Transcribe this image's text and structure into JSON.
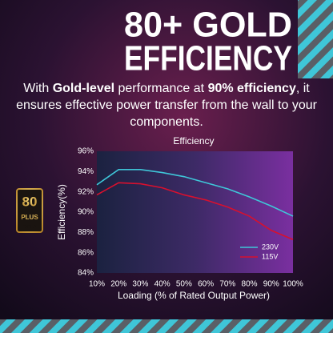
{
  "header": {
    "title_lines": [
      "80+ GOLD",
      "EFFICIENCY"
    ]
  },
  "intro": {
    "parts": [
      "With ",
      "Gold-level",
      " performance at ",
      "90% efficiency",
      ", it ensures effective power transfer from the wall to your components."
    ]
  },
  "badge": {
    "number": "80",
    "plus": "PLUS",
    "level": "GOLD"
  },
  "chart_data": {
    "type": "line",
    "title": "Efficiency",
    "x_label": "Loading (% of Rated Output Power)",
    "y_label": "Efficiency(%)",
    "x": [
      10,
      20,
      30,
      40,
      50,
      60,
      70,
      80,
      90,
      100
    ],
    "series": [
      {
        "name": "230V",
        "color": "#3fc6d8",
        "values": [
          92.7,
          94.2,
          94.2,
          93.9,
          93.5,
          92.9,
          92.3,
          91.5,
          90.6,
          89.6
        ]
      },
      {
        "name": "115V",
        "color": "#d8102e",
        "values": [
          91.7,
          92.9,
          92.8,
          92.4,
          91.7,
          91.2,
          90.5,
          89.6,
          88.2,
          87.3
        ]
      }
    ],
    "xlim": [
      10,
      100
    ],
    "xticks": [
      {
        "value": 10,
        "label": "10%"
      },
      {
        "value": 20,
        "label": "20%"
      },
      {
        "value": 30,
        "label": "30%"
      },
      {
        "value": 40,
        "label": "40%"
      },
      {
        "value": 50,
        "label": "50%"
      },
      {
        "value": 60,
        "label": "60%"
      },
      {
        "value": 70,
        "label": "70%"
      },
      {
        "value": 80,
        "label": "80%"
      },
      {
        "value": 90,
        "label": "90%"
      },
      {
        "value": 100,
        "label": "100%"
      }
    ],
    "ylim": [
      84,
      96
    ],
    "yticks": [
      {
        "value": 84,
        "label": "84%"
      },
      {
        "value": 86,
        "label": "86%"
      },
      {
        "value": 88,
        "label": "88%"
      },
      {
        "value": 90,
        "label": "90%"
      },
      {
        "value": 92,
        "label": "92%"
      },
      {
        "value": 94,
        "label": "94%"
      },
      {
        "value": 96,
        "label": "96%"
      }
    ],
    "grid": false,
    "legend": "lower right"
  }
}
